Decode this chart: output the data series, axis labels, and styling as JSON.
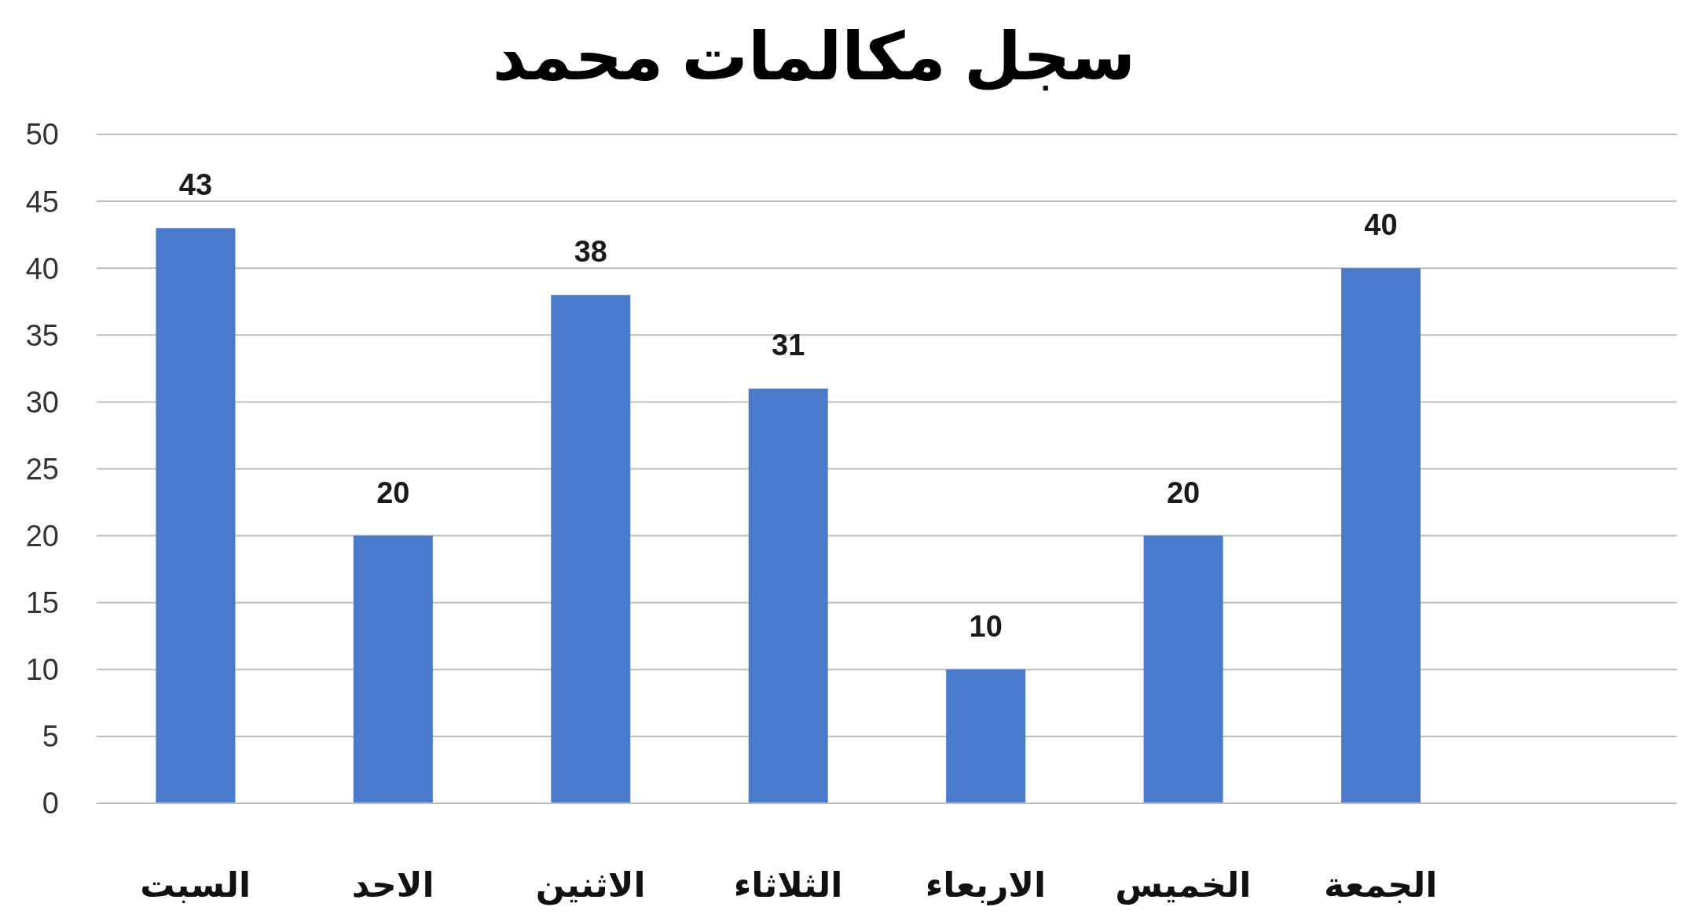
{
  "chart_data": {
    "type": "bar",
    "title": "سجل مكالمات محمد",
    "categories": [
      "السبت",
      "الاحد",
      "الاثنين",
      "الثلاثاء",
      "الاربعاء",
      "الخميس",
      "الجمعة"
    ],
    "values": [
      43,
      20,
      38,
      31,
      10,
      20,
      40
    ],
    "color": "#4a7acb",
    "ylim": [
      0,
      50
    ],
    "yticks": [
      0,
      5,
      10,
      15,
      20,
      25,
      30,
      35,
      40,
      45,
      50
    ],
    "grid": "y",
    "data_labels": true
  }
}
